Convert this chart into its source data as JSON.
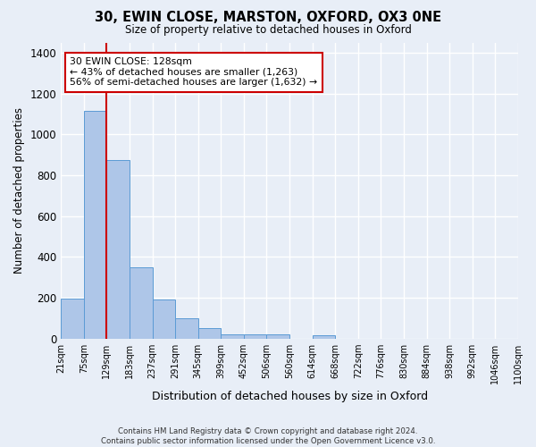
{
  "title": "30, EWIN CLOSE, MARSTON, OXFORD, OX3 0NE",
  "subtitle": "Size of property relative to detached houses in Oxford",
  "xlabel": "Distribution of detached houses by size in Oxford",
  "ylabel": "Number of detached properties",
  "footer_line1": "Contains HM Land Registry data © Crown copyright and database right 2024.",
  "footer_line2": "Contains public sector information licensed under the Open Government Licence v3.0.",
  "bin_labels": [
    "21sqm",
    "75sqm",
    "129sqm",
    "183sqm",
    "237sqm",
    "291sqm",
    "345sqm",
    "399sqm",
    "452sqm",
    "506sqm",
    "560sqm",
    "614sqm",
    "668sqm",
    "722sqm",
    "776sqm",
    "830sqm",
    "884sqm",
    "938sqm",
    "992sqm",
    "1046sqm",
    "1100sqm"
  ],
  "bar_values": [
    195,
    1115,
    875,
    350,
    190,
    100,
    52,
    22,
    22,
    18,
    0,
    14,
    0,
    0,
    0,
    0,
    0,
    0,
    0,
    0
  ],
  "bar_color": "#aec6e8",
  "bar_edge_color": "#5b9bd5",
  "background_color": "#e8eef7",
  "grid_color": "#ffffff",
  "vline_position": 2,
  "vline_color": "#cc0000",
  "annotation_line1": "30 EWIN CLOSE: 128sqm",
  "annotation_line2": "← 43% of detached houses are smaller (1,263)",
  "annotation_line3": "56% of semi-detached houses are larger (1,632) →",
  "annotation_box_facecolor": "#ffffff",
  "annotation_box_edgecolor": "#cc0000",
  "ylim": [
    0,
    1450
  ],
  "yticks": [
    0,
    200,
    400,
    600,
    800,
    1000,
    1200,
    1400
  ]
}
